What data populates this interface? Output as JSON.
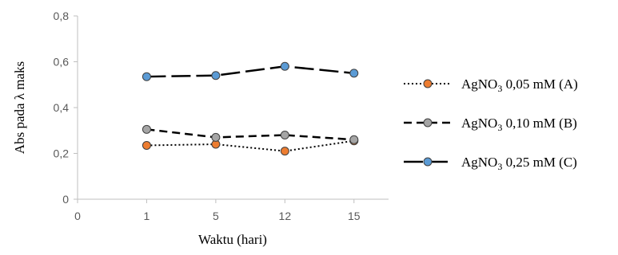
{
  "chart_data": {
    "type": "line",
    "title": "",
    "xlabel": "Waktu (hari)",
    "ylabel": "Abs pada λ maks",
    "x_ticks": [
      "0",
      "1",
      "5",
      "12",
      "15"
    ],
    "categories": [
      "1",
      "5",
      "12",
      "15"
    ],
    "y_ticks": [
      "0",
      "0,2",
      "0,4",
      "0,6",
      "0,8"
    ],
    "ylim": [
      0,
      0.8
    ],
    "grid": false,
    "legend_position": "right",
    "series": [
      {
        "name_main": "AgNO",
        "name_sub": "3",
        "name_tail": " 0,05 mM (A)",
        "values": [
          0.235,
          0.24,
          0.21,
          0.255
        ],
        "line_style": "dotted",
        "marker_color": "#ED7D31"
      },
      {
        "name_main": "AgNO",
        "name_sub": "3",
        "name_tail": " 0,10 mM (B)",
        "values": [
          0.305,
          0.27,
          0.28,
          0.26
        ],
        "line_style": "dashed",
        "marker_color": "#A5A5A5"
      },
      {
        "name_main": "AgNO",
        "name_sub": "3",
        "name_tail": " 0,25 mM (C)",
        "values": [
          0.535,
          0.54,
          0.58,
          0.55
        ],
        "line_style": "long-dash",
        "marker_color": "#5B9BD5"
      }
    ]
  }
}
